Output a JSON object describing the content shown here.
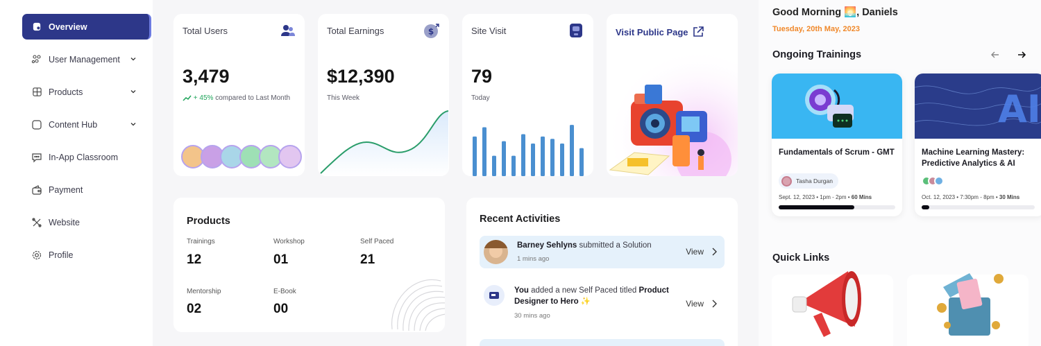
{
  "sidebar": {
    "items": [
      {
        "label": "Overview",
        "icon": "overview-icon",
        "active": true
      },
      {
        "label": "User Management",
        "icon": "users-icon",
        "expandable": true
      },
      {
        "label": "Products",
        "icon": "products-icon",
        "expandable": true
      },
      {
        "label": "Content Hub",
        "icon": "content-hub-icon",
        "expandable": true
      },
      {
        "label": "In-App Classroom",
        "icon": "chat-icon"
      },
      {
        "label": "Payment",
        "icon": "wallet-icon"
      },
      {
        "label": "Website",
        "icon": "tools-icon"
      },
      {
        "label": "Profile",
        "icon": "gear-icon"
      }
    ]
  },
  "stats": {
    "users": {
      "title": "Total Users",
      "value": "3,479",
      "trend": "+ 45%",
      "trend_suffix": "compared to Last Month",
      "icon": "users-group-icon"
    },
    "earnings": {
      "title": "Total Earnings",
      "value": "$12,390",
      "sub": "This Week",
      "icon": "dollar-coin-icon"
    },
    "visits": {
      "title": "Site Visit",
      "value": "79",
      "sub": "Today",
      "icon": "site-visit-icon",
      "bars": [
        0.68,
        0.84,
        0.35,
        0.6,
        0.35,
        0.72,
        0.56,
        0.68,
        0.64,
        0.56,
        0.88,
        0.48
      ]
    },
    "public_page": {
      "title": "Visit Public Page",
      "icon": "external-link-icon"
    }
  },
  "products": {
    "title": "Products",
    "items": [
      {
        "label": "Trainings",
        "value": "12"
      },
      {
        "label": "Workshop",
        "value": "01"
      },
      {
        "label": "Self Paced",
        "value": "21"
      },
      {
        "label": "Mentorship",
        "value": "02"
      },
      {
        "label": "E-Book",
        "value": "00"
      }
    ]
  },
  "activities": {
    "title": "Recent Activities",
    "view_label": "View",
    "rows": [
      {
        "actor": "Barney Sehlyns",
        "action": " submitted a Solution",
        "time": "1 mins ago"
      },
      {
        "actor": "You",
        "action": " added a new Self Paced titled ",
        "object": "Product Designer to Hero",
        "emoji": " ✨",
        "time": "30 mins ago"
      }
    ]
  },
  "right": {
    "greeting": "Good Morning 🌅, Daniels",
    "date": "Tuesday, 20th May, 2023",
    "trainings_title": "Ongoing Trainings",
    "trainings": [
      {
        "name": "Fundamentals of Scrum - GMT",
        "tutor": "Tasha Durgan",
        "schedule_date": "Sept. 12, 2023",
        "schedule_time": "1pm - 2pm",
        "duration": "60 Mins",
        "progress": 0.65
      },
      {
        "name": "Machine Learning Mastery: Predictive Analytics & AI",
        "schedule_date": "Oct. 12, 2023",
        "schedule_time": "7:30pm - 8pm",
        "duration": "30 Mins",
        "progress": 0.07
      }
    ],
    "quick_links_title": "Quick Links"
  },
  "colors": {
    "brand": "#2d3789",
    "accent_orange": "#f0882a",
    "green": "#1ea45a",
    "bar_blue": "#4a8fd0"
  }
}
